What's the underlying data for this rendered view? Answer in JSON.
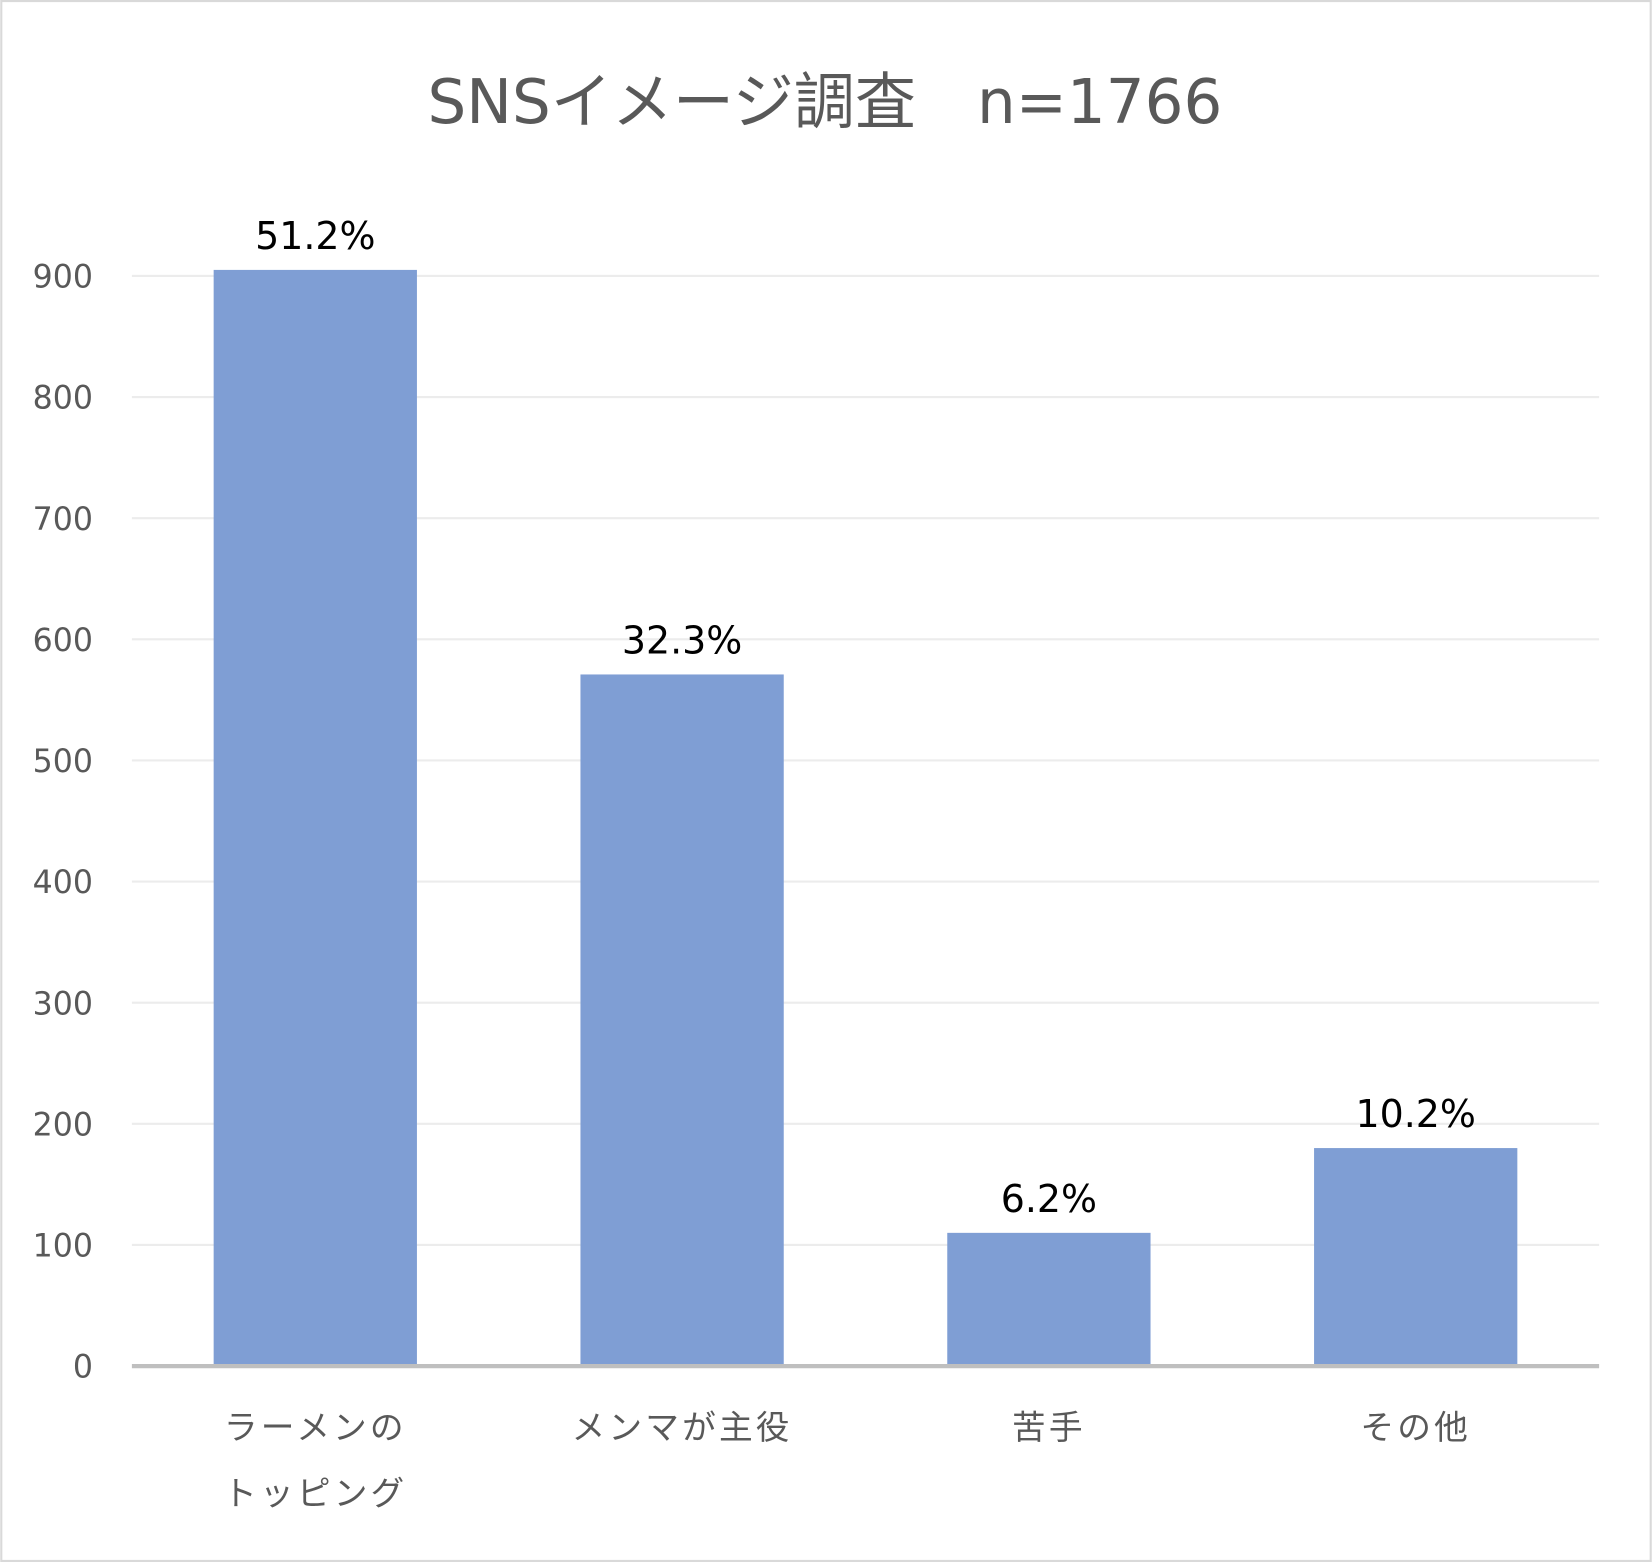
{
  "chart_data": {
    "type": "bar",
    "title": "SNSイメージ調査　n=1766",
    "categories": [
      [
        "ラーメンの",
        "トッピング"
      ],
      [
        "メンマが主役"
      ],
      [
        "苦手"
      ],
      [
        "その他"
      ]
    ],
    "values": [
      905,
      571,
      110,
      180
    ],
    "data_labels": [
      "51.2%",
      "32.3%",
      "6.2%",
      "10.2%"
    ],
    "xlabel": "",
    "ylabel": "",
    "ylim": [
      0,
      900
    ],
    "yticks": [
      0,
      100,
      200,
      300,
      400,
      500,
      600,
      700,
      800,
      900
    ],
    "grid": true,
    "legend": "none",
    "colors": {
      "bar": "#7f9ed4",
      "text": "#595959",
      "grid": "#ececec",
      "axis": "#bfbfbf"
    }
  }
}
